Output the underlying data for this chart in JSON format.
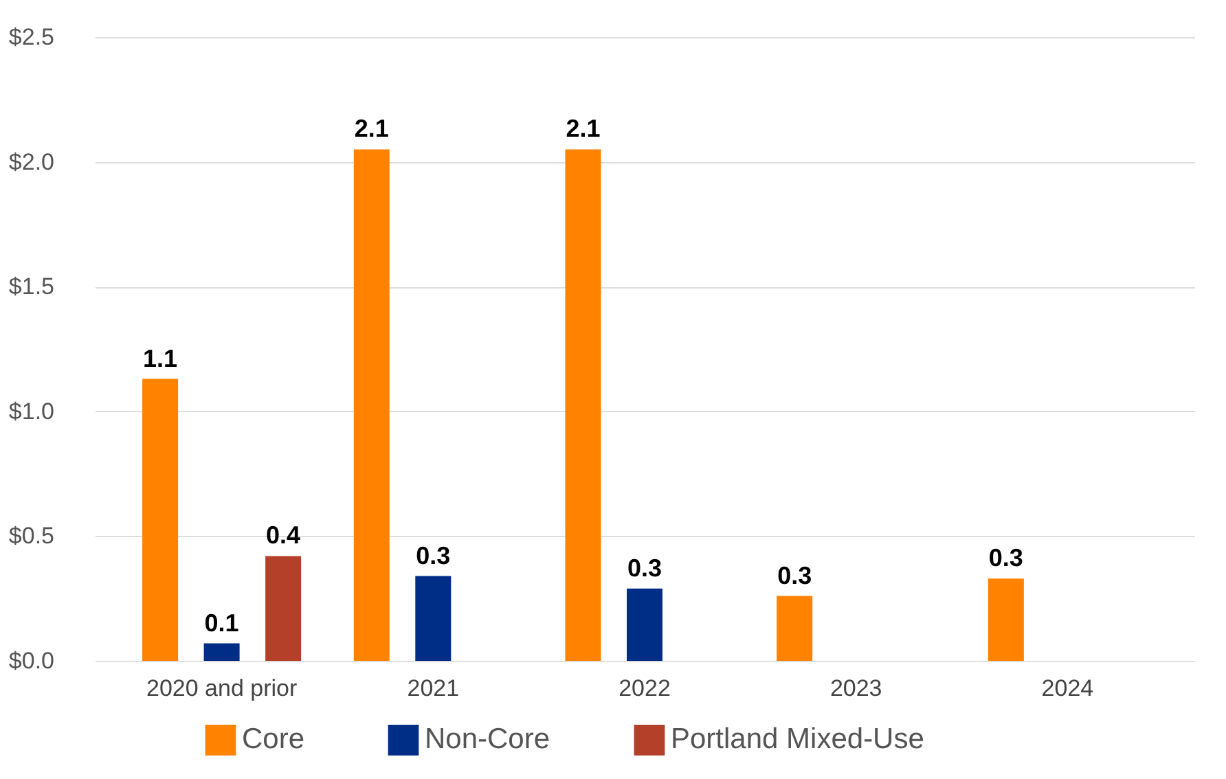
{
  "chart_data": {
    "type": "bar",
    "categories": [
      "2020 and prior",
      "2021",
      "2022",
      "2023",
      "2024"
    ],
    "series": [
      {
        "name": "Core",
        "color": "#ff8300",
        "values": [
          1.13,
          2.05,
          2.05,
          0.26,
          0.33
        ],
        "value_labels": [
          "1.1",
          "2.1",
          "2.1",
          "0.3",
          "0.3"
        ]
      },
      {
        "name": "Non-Core",
        "color": "#002d86",
        "values": [
          0.07,
          0.34,
          0.29,
          null,
          null
        ],
        "value_labels": [
          "0.1",
          "0.3",
          "0.3",
          null,
          null
        ]
      },
      {
        "name": "Portland Mixed-Use",
        "color": "#b5402a",
        "values": [
          0.42,
          null,
          null,
          null,
          null
        ],
        "value_labels": [
          "0.4",
          null,
          null,
          null,
          null
        ]
      }
    ],
    "ylim": [
      0,
      2.5
    ],
    "yticks": [
      {
        "value": 0,
        "label": "$0.0"
      },
      {
        "value": 0.5,
        "label": "$0.5"
      },
      {
        "value": 1,
        "label": "$1.0"
      },
      {
        "value": 1.5,
        "label": "$1.5"
      },
      {
        "value": 2,
        "label": "$2.0"
      },
      {
        "value": 2.5,
        "label": "$2.5"
      }
    ],
    "grid": "y",
    "legend": "bottom"
  }
}
